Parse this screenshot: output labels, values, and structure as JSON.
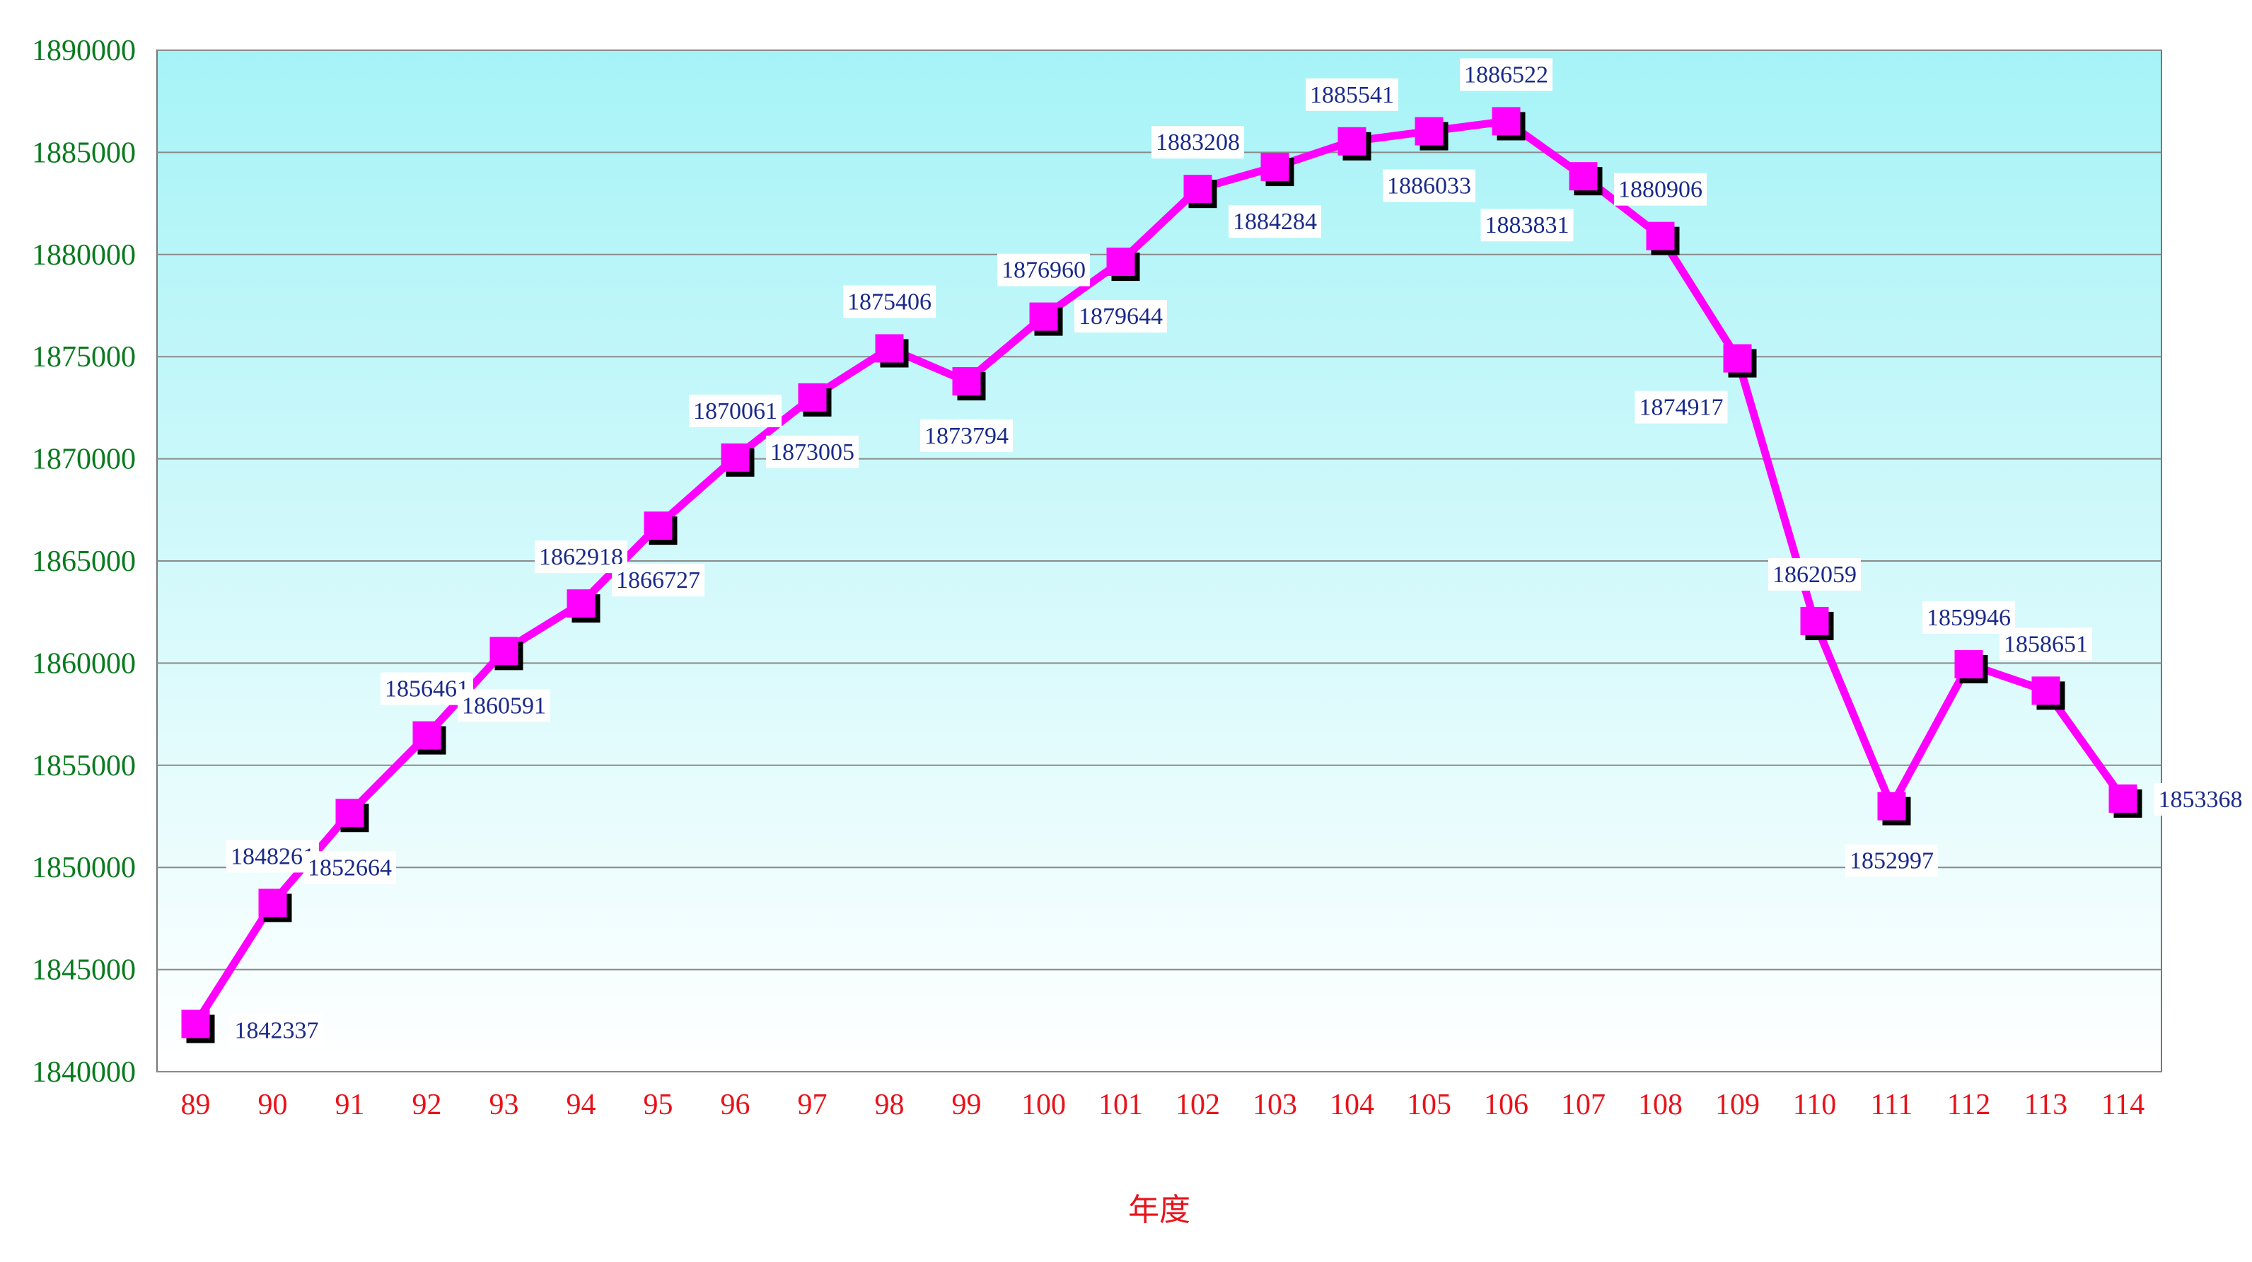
{
  "chart_data": {
    "type": "line",
    "title": "",
    "xlabel": "年度",
    "ylabel": "",
    "categories": [
      "89",
      "90",
      "91",
      "92",
      "93",
      "94",
      "95",
      "96",
      "97",
      "98",
      "99",
      "100",
      "101",
      "102",
      "103",
      "104",
      "105",
      "106",
      "107",
      "108",
      "109",
      "110",
      "111",
      "112",
      "113",
      "114"
    ],
    "series": [
      {
        "values": [
          1842337,
          1848261,
          1852664,
          1856461,
          1860591,
          1862918,
          1866727,
          1870061,
          1873005,
          1875406,
          1873794,
          1876960,
          1879644,
          1883208,
          1884284,
          1885541,
          1886033,
          1886522,
          1883831,
          1880906,
          1874917,
          1862059,
          1852997,
          1859946,
          1858651,
          1853368
        ],
        "labels": [
          "1842337",
          "1848261",
          "1852664",
          "1856461",
          "1860591",
          "1862918",
          "1866727",
          "1870061",
          "1873005",
          "1875406",
          "1873794",
          "1876960",
          "1879644",
          "1883208",
          "1884284",
          "1885541",
          "1886033",
          "1886522",
          "1883831",
          "1880906",
          "1874917",
          "1862059",
          "1852997",
          "1859946",
          "1858651",
          "1853368"
        ],
        "color": "#ff00ff"
      }
    ],
    "ylim": [
      1840000,
      1890000
    ],
    "yticks": [
      "1840000",
      "1845000",
      "1850000",
      "1855000",
      "1860000",
      "1865000",
      "1870000",
      "1875000",
      "1880000",
      "1885000",
      "1890000"
    ],
    "grid": true,
    "legend": "none",
    "colors": {
      "plot_top": "#a6f3f7",
      "plot_bottom": "#ffffff",
      "gridline": "#8a8a8a",
      "line": "#ff00ff",
      "marker_shadow": "#000000",
      "ytick": "#0a7a1f",
      "xtick": "#e8121a",
      "data_label": "#1a2a8a"
    }
  }
}
